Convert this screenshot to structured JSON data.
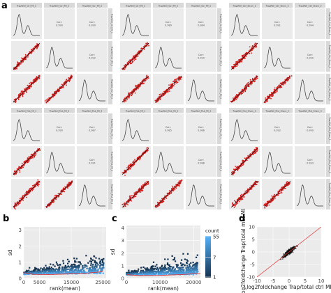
{
  "panel_labels": {
    "a": "a",
    "b": "b",
    "c": "c",
    "d": "d"
  },
  "colors": {
    "point": "#d81b1b",
    "fit": "#111111",
    "diag": "#e03030",
    "panel_bg": "#ebebeb",
    "strip_bg": "#d9d9d9",
    "density": "#333333",
    "hex_low": "#14324f",
    "hex_high": "#56b1f7"
  },
  "matrices": [
    {
      "strip_labels": [
        "TrapWell_Ctrl_MI_1",
        "TrapWell_Ctrl_MI_2",
        "TrapWell_Ctrl_MI_3"
      ],
      "corr_label": "Corr:",
      "corr_values": [
        "0.990",
        "0.990",
        "0.992"
      ]
    },
    {
      "strip_labels": [
        "TrapWell_Ctrl_MI_1",
        "TrapWell_Ctrl_MI_2",
        "TrapWell_Ctrl_MI_3"
      ],
      "corr_label": "Corr:",
      "corr_values": [
        "0.989",
        "0.984",
        "0.990"
      ]
    },
    {
      "strip_labels": [
        "TrapWell_Ctrl_Sham_1",
        "TrapWell_Ctrl_Sham_2",
        "TrapWell_Ctrl_Sham_3"
      ],
      "corr_label": "Corr:",
      "corr_values": [
        "0.991",
        "0.994",
        "0.990"
      ]
    },
    {
      "strip_labels": [
        "TrapWell_Mut_MI_1",
        "TrapWell_Mut_MI_2",
        "TrapWell_Mut_MI_3"
      ],
      "corr_label": "Corr:",
      "corr_values": [
        "0.990",
        "0.987",
        "0.991"
      ]
    },
    {
      "strip_labels": [
        "TrapWell_Mut_MI_1",
        "TrapWell_Mut_MI_2",
        "TrapWell_Mut_MI_3"
      ],
      "corr_label": "Corr:",
      "corr_values": [
        "0.985",
        "0.986",
        "0.988"
      ]
    },
    {
      "strip_labels": [
        "TrapWell_Mut_Sham_1",
        "TrapWell_Mut_Sham_2",
        "TrapWell_Mut_Sham_3"
      ],
      "corr_label": "Corr:",
      "corr_values": [
        "0.992",
        "0.990",
        "0.993"
      ]
    }
  ],
  "chart_data": [
    {
      "id": "b",
      "type": "heatmap",
      "xlabel": "rank(mean)",
      "ylabel": "sd",
      "xlim": [
        0,
        26000
      ],
      "ylim": [
        0,
        3.2
      ],
      "xticks": [
        "0",
        "5000",
        "15000",
        "25000"
      ],
      "xtick_values": [
        0,
        5000,
        15000,
        25000
      ],
      "yticks": [
        "0",
        "1",
        "2",
        "3"
      ],
      "ytick_values": [
        0,
        1,
        2,
        3
      ],
      "trend": [
        [
          0,
          0.35
        ],
        [
          3000,
          0.25
        ],
        [
          8000,
          0.24
        ],
        [
          15000,
          0.28
        ],
        [
          20000,
          0.33
        ],
        [
          25000,
          0.42
        ]
      ]
    },
    {
      "id": "c",
      "type": "heatmap",
      "xlabel": "rank(mean)",
      "ylabel": "sd",
      "xlim": [
        0,
        22000
      ],
      "ylim": [
        0,
        4.2
      ],
      "xticks": [
        "0",
        "10000",
        "20000"
      ],
      "xtick_values": [
        0,
        10000,
        20000
      ],
      "yticks": [
        "0",
        "1",
        "2",
        "3",
        "4"
      ],
      "ytick_values": [
        0,
        1,
        2,
        3,
        4
      ],
      "trend": [
        [
          0,
          0.3
        ],
        [
          4000,
          0.22
        ],
        [
          10000,
          0.24
        ],
        [
          16000,
          0.3
        ],
        [
          22000,
          0.4
        ]
      ],
      "legend": {
        "title": "count",
        "ticks": [
          "55",
          "7",
          "1"
        ],
        "tick_values": [
          55,
          7,
          1
        ],
        "position": "right"
      }
    },
    {
      "id": "d",
      "type": "scatter",
      "xlabel": "log2foldchange Trap/total ctrl MI",
      "ylabel": "log2foldchange Trap/total mut MI",
      "xlim": [
        -10,
        10
      ],
      "ylim": [
        -10,
        10
      ],
      "xticks": [
        "-10",
        "-5",
        "0",
        "5",
        "10"
      ],
      "xtick_values": [
        -10,
        -5,
        0,
        5,
        10
      ],
      "yticks": [
        "-10",
        "-5",
        "0",
        "5",
        "10"
      ],
      "ytick_values": [
        -10,
        -5,
        0,
        5,
        10
      ],
      "reference_line": "y = x"
    }
  ]
}
